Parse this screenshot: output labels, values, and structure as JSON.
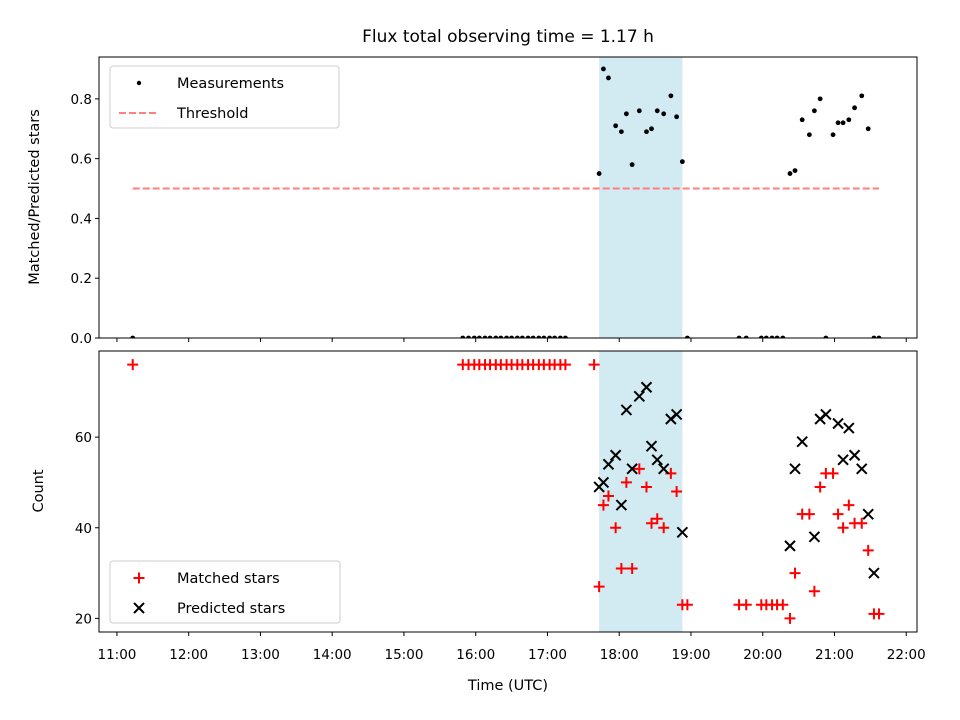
{
  "chart_data": [
    {
      "type": "scatter",
      "title": "Flux total observing time = 1.17 h",
      "xlabel": "",
      "ylabel": "Matched/Predicted stars",
      "xlim": [
        10.75,
        22.15
      ],
      "ylim": [
        0,
        0.94
      ],
      "yticks": [
        0,
        0.2,
        0.4,
        0.6,
        0.8
      ],
      "ytick_labels": [
        "0.0",
        "0.2",
        "0.4",
        "0.6",
        "0.8"
      ],
      "highlight": {
        "x": [
          17.72,
          18.88
        ],
        "color": "#add8e6"
      },
      "legend": {
        "position": "top-left",
        "entries": [
          "Measurements",
          "Threshold"
        ]
      },
      "series": [
        {
          "name": "Measurements",
          "marker": "dot",
          "color": "#000000",
          "x": [
            11.22,
            15.82,
            15.9,
            15.98,
            16.05,
            16.13,
            16.2,
            16.28,
            16.35,
            16.43,
            16.5,
            16.58,
            16.65,
            16.73,
            16.8,
            16.88,
            16.95,
            17.03,
            17.1,
            17.18,
            17.25,
            17.72,
            17.78,
            17.85,
            17.95,
            18.03,
            18.1,
            18.18,
            18.28,
            18.38,
            18.45,
            18.53,
            18.62,
            18.72,
            18.8,
            18.88,
            18.95,
            19.67,
            19.77,
            19.98,
            20.05,
            20.13,
            20.2,
            20.28,
            20.38,
            20.45,
            20.55,
            20.65,
            20.72,
            20.8,
            20.88,
            20.98,
            21.05,
            21.12,
            21.2,
            21.28,
            21.38,
            21.47,
            21.55,
            21.62
          ],
          "y": [
            0,
            0,
            0,
            0,
            0,
            0,
            0,
            0,
            0,
            0,
            0,
            0,
            0,
            0,
            0,
            0,
            0,
            0,
            0,
            0,
            0,
            0.55,
            0.9,
            0.87,
            0.71,
            0.69,
            0.75,
            0.58,
            0.76,
            0.69,
            0.7,
            0.76,
            0.75,
            0.81,
            0.74,
            0.59,
            0,
            0,
            0,
            0,
            0,
            0,
            0,
            0,
            0.55,
            0.56,
            0.73,
            0.68,
            0.76,
            0.8,
            0,
            0.68,
            0.72,
            0.72,
            0.73,
            0.77,
            0.81,
            0.7,
            0,
            0
          ]
        },
        {
          "name": "Threshold",
          "marker": "dashed-line",
          "color": "#ff7f7f",
          "x": [
            11.22,
            21.62
          ],
          "y": [
            0.5,
            0.5
          ]
        }
      ]
    },
    {
      "type": "scatter",
      "title": "",
      "xlabel": "Time (UTC)",
      "ylabel": "Count",
      "xlim": [
        10.75,
        22.15
      ],
      "ylim": [
        17,
        79
      ],
      "yticks": [
        20,
        40,
        60
      ],
      "xticks": [
        11,
        12,
        13,
        14,
        15,
        16,
        17,
        18,
        19,
        20,
        21,
        22
      ],
      "xtick_labels": [
        "11:00",
        "12:00",
        "13:00",
        "14:00",
        "15:00",
        "16:00",
        "17:00",
        "18:00",
        "19:00",
        "20:00",
        "21:00",
        "22:00"
      ],
      "highlight": {
        "x": [
          17.72,
          18.88
        ],
        "color": "#add8e6"
      },
      "legend": {
        "position": "bottom-left",
        "entries": [
          "Matched stars",
          "Predicted stars"
        ]
      },
      "series": [
        {
          "name": "Matched stars",
          "marker": "plus",
          "color": "#ff0000",
          "x": [
            11.22,
            15.82,
            15.9,
            15.98,
            16.05,
            16.13,
            16.2,
            16.28,
            16.35,
            16.43,
            16.5,
            16.58,
            16.65,
            16.73,
            16.8,
            16.88,
            16.95,
            17.03,
            17.1,
            17.18,
            17.25,
            17.65,
            17.72,
            17.78,
            17.85,
            17.95,
            18.03,
            18.1,
            18.18,
            18.28,
            18.38,
            18.45,
            18.53,
            18.62,
            18.72,
            18.8,
            18.88,
            18.95,
            19.67,
            19.77,
            19.98,
            20.05,
            20.13,
            20.2,
            20.28,
            20.38,
            20.45,
            20.55,
            20.65,
            20.72,
            20.8,
            20.88,
            20.98,
            21.05,
            21.12,
            21.2,
            21.28,
            21.38,
            21.47,
            21.55,
            21.62
          ],
          "y": [
            76,
            76,
            76,
            76,
            76,
            76,
            76,
            76,
            76,
            76,
            76,
            76,
            76,
            76,
            76,
            76,
            76,
            76,
            76,
            76,
            76,
            76,
            27,
            45,
            47,
            40,
            31,
            50,
            31,
            53,
            49,
            41,
            42,
            40,
            52,
            48,
            23,
            23,
            23,
            23,
            23,
            23,
            23,
            23,
            23,
            20,
            30,
            43,
            43,
            26,
            49,
            52,
            52,
            43,
            40,
            45,
            41,
            41,
            35,
            21,
            21
          ]
        },
        {
          "name": "Predicted stars",
          "marker": "x",
          "color": "#000000",
          "x": [
            17.72,
            17.78,
            17.85,
            17.95,
            18.03,
            18.1,
            18.18,
            18.28,
            18.38,
            18.45,
            18.53,
            18.62,
            18.72,
            18.8,
            18.88,
            20.38,
            20.45,
            20.55,
            20.72,
            20.8,
            20.88,
            21.05,
            21.12,
            21.2,
            21.28,
            21.38,
            21.47,
            21.55
          ],
          "y": [
            49,
            50,
            54,
            56,
            45,
            66,
            53,
            69,
            71,
            58,
            55,
            53,
            64,
            65,
            39,
            36,
            53,
            59,
            38,
            64,
            65,
            63,
            55,
            62,
            56,
            53,
            43,
            30
          ]
        }
      ]
    }
  ]
}
